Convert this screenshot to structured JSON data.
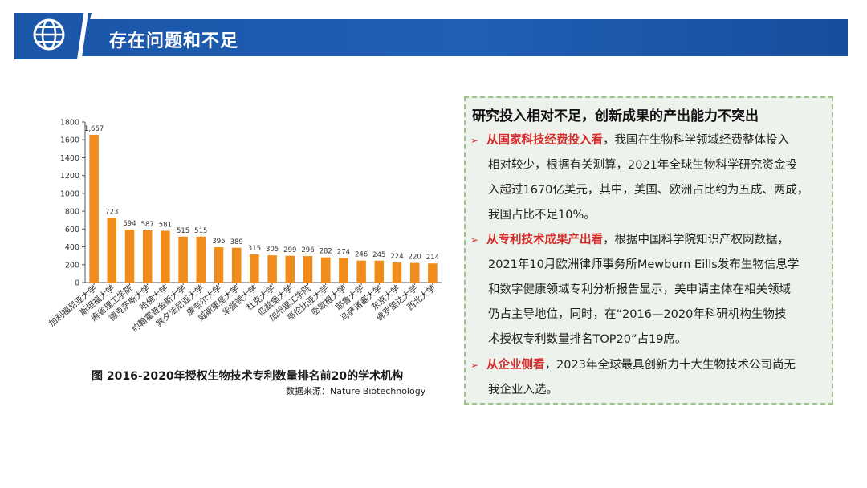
{
  "header": {
    "title": "存在问题和不足",
    "icon": "globe-icon"
  },
  "chart_data": {
    "type": "bar",
    "categories": [
      "加利福尼亚大学",
      "斯坦福大学",
      "麻省理工学院",
      "德克萨斯大学",
      "哈佛大学",
      "约翰霍普金斯大学",
      "宾夕法尼亚大学",
      "康奈尔大学",
      "威斯康星大学",
      "华盛顿大学",
      "杜克大学",
      "匹兹堡大学",
      "加州理工学院",
      "哥伦比亚大学",
      "密歇根大学",
      "耶鲁大学",
      "马萨诸塞大学",
      "东京大学",
      "佛罗里达大学",
      "西北大学"
    ],
    "values": [
      1657,
      723,
      594,
      587,
      581,
      515,
      515,
      395,
      389,
      315,
      305,
      299,
      296,
      282,
      274,
      246,
      245,
      224,
      220,
      214
    ],
    "value_labels": [
      "1,657",
      "723",
      "594",
      "587",
      "581",
      "515",
      "515",
      "395",
      "389",
      "315",
      "305",
      "299",
      "296",
      "282",
      "274",
      "246",
      "245",
      "224",
      "220",
      "214"
    ],
    "yticks": [
      "0",
      "200",
      "400",
      "600",
      "800",
      "1000",
      "1200",
      "1400",
      "1600",
      "1800"
    ],
    "ylim": [
      0,
      1800
    ],
    "bar_color": "#f08c1c",
    "title": "图 2016-2020年授权生物技术专利数量排名前20的学术机构",
    "xlabel": "",
    "ylabel": "",
    "source": "数据来源：Nature Biotechnology"
  },
  "panel": {
    "title": "研究投入相对不足，创新成果的产出能力不突出",
    "items": [
      {
        "highlight": "从国家科技经费投入看",
        "lines": [
          "，我国在生物科学领域经费整体投入",
          "相对较少，根据有关测算，2021年全球生物科学研究资金投",
          "入超过1670亿美元，其中，美国、欧洲占比约为五成、两成，",
          "我国占比不足10%。"
        ]
      },
      {
        "highlight": "从专利技术成果产出看",
        "lines": [
          "，根据中国科学院知识产权网数据，",
          "2021年10月欧洲律师事务所Mewburn Eills发布生物信息学",
          "和数字健康领域专利分析报告显示，美申请主体在相关领域",
          "仍占主导地位，同时，在“2016—2020年科研机构生物技",
          "术授权专利数量排名TOP20”占19席。"
        ]
      },
      {
        "highlight": "从企业侧看",
        "lines": [
          "，2023年全球最具创新力十大生物技术公司尚无",
          "我企业入选。"
        ]
      }
    ],
    "arrow": "➢"
  }
}
